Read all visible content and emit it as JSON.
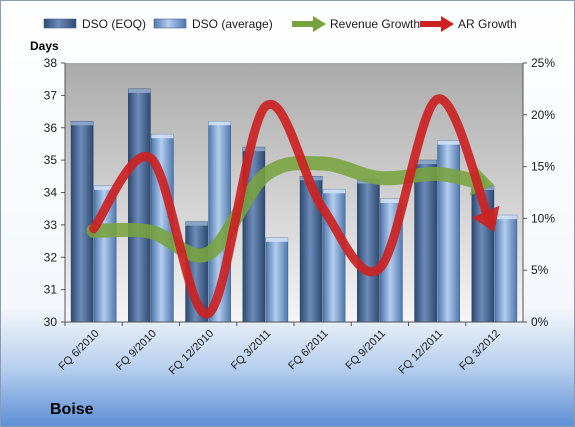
{
  "chart_data": {
    "type": "bar",
    "company": "Boise",
    "ylabel": "Days",
    "ylim": [
      30,
      38
    ],
    "y2lim": [
      0,
      25
    ],
    "y_ticks": [
      "30",
      "31",
      "32",
      "33",
      "34",
      "35",
      "36",
      "37",
      "38"
    ],
    "y2_ticks": [
      "0%",
      "5%",
      "10%",
      "15%",
      "20%",
      "25%"
    ],
    "categories": [
      "FQ 6/2010",
      "FQ 9/2010",
      "FQ 12/2010",
      "FQ 3/2011",
      "FQ 6/2011",
      "FQ 9/2011",
      "FQ 12/2011",
      "FQ 3/2012"
    ],
    "legend_position": "top",
    "grid": false,
    "series": [
      {
        "name": "DSO (EOQ)",
        "kind": "bar",
        "axis": "left",
        "color": "#4a6a98",
        "values": [
          36.2,
          37.2,
          33.1,
          35.4,
          34.5,
          34.4,
          35.0,
          34.2
        ]
      },
      {
        "name": "DSO (average)",
        "kind": "bar",
        "axis": "left",
        "color": "#7fa6d9",
        "values": [
          34.2,
          35.8,
          36.2,
          32.6,
          34.1,
          33.8,
          35.6,
          33.3
        ]
      },
      {
        "name": "Revenue Growth",
        "kind": "arrow-line",
        "axis": "right",
        "color": "#77a33f",
        "values": [
          8.8,
          8.7,
          6.6,
          14.2,
          15.3,
          13.9,
          14.3,
          13.2
        ]
      },
      {
        "name": "AR Growth",
        "kind": "arrow-line",
        "axis": "right",
        "color": "#cc2222",
        "values": [
          9.0,
          15.8,
          0.8,
          20.8,
          11.0,
          5.2,
          21.5,
          8.7
        ]
      }
    ]
  }
}
